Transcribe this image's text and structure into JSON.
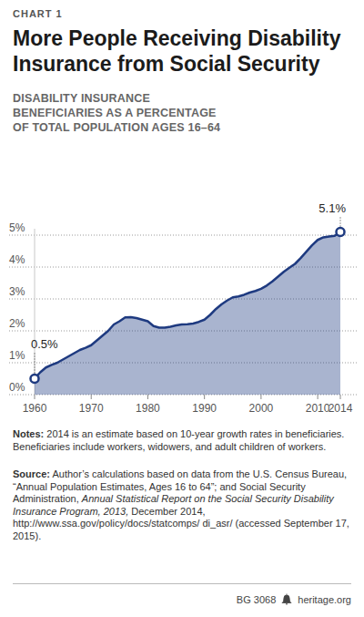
{
  "header": {
    "kicker": "CHART 1"
  },
  "chart_data": {
    "type": "area",
    "title": "More People Receiving Disability Insurance from Social Security",
    "subtitle": "DISABILITY INSURANCE BENEFICIARIES AS A PERCENTAGE OF TOTAL POPULATION AGES 16–64",
    "x": [
      1960,
      1961,
      1962,
      1963,
      1964,
      1965,
      1966,
      1967,
      1968,
      1969,
      1970,
      1971,
      1972,
      1973,
      1974,
      1975,
      1976,
      1977,
      1978,
      1979,
      1980,
      1981,
      1982,
      1983,
      1984,
      1985,
      1986,
      1987,
      1988,
      1989,
      1990,
      1991,
      1992,
      1993,
      1994,
      1995,
      1996,
      1997,
      1998,
      1999,
      2000,
      2001,
      2002,
      2003,
      2004,
      2005,
      2006,
      2007,
      2008,
      2009,
      2010,
      2011,
      2012,
      2013,
      2014
    ],
    "values": [
      0.5,
      0.7,
      0.85,
      0.93,
      1.0,
      1.1,
      1.2,
      1.3,
      1.4,
      1.47,
      1.55,
      1.7,
      1.85,
      2.0,
      2.2,
      2.3,
      2.42,
      2.43,
      2.4,
      2.35,
      2.3,
      2.15,
      2.1,
      2.1,
      2.13,
      2.17,
      2.2,
      2.21,
      2.23,
      2.28,
      2.35,
      2.5,
      2.68,
      2.83,
      2.95,
      3.05,
      3.08,
      3.13,
      3.2,
      3.25,
      3.32,
      3.42,
      3.55,
      3.7,
      3.85,
      3.98,
      4.1,
      4.28,
      4.48,
      4.68,
      4.85,
      4.93,
      4.96,
      4.98,
      5.1
    ],
    "color": "#1e3a80",
    "xlim": [
      1960,
      2014
    ],
    "xticks": [
      1960,
      1970,
      1980,
      1990,
      2000,
      2010,
      2014
    ],
    "ylim": [
      0,
      5.2
    ],
    "yticks": [
      {
        "value": 0,
        "label": "0%"
      },
      {
        "value": 1,
        "label": "1%"
      },
      {
        "value": 2,
        "label": "2%"
      },
      {
        "value": 3,
        "label": "3%"
      },
      {
        "value": 4,
        "label": "4%"
      },
      {
        "value": 5,
        "label": "5%"
      }
    ],
    "grid": true,
    "annotations": [
      {
        "x": 1960,
        "y": 0.5,
        "label": "0.5%"
      },
      {
        "x": 2014,
        "y": 5.1,
        "label": "5.1%"
      }
    ]
  },
  "notes": {
    "label": "Notes:",
    "text": "2014 is an estimate based on 10-year growth rates in beneficiaries. Beneficiaries include workers, widowers, and adult children of workers."
  },
  "source": {
    "label": "Source:",
    "parts": [
      "Author’s calculations based on data from the U.S. Census Bureau, “Annual Population Estimates, Ages 16 to 64”; and Social Security Administration, ",
      "Annual Statistical Report on the Social Security Disability Insurance Program, 2013,",
      " December 2014, http://www.ssa.gov/policy/docs/statcomps/ di_asr/ (accessed September 17, 2015)."
    ]
  },
  "footer": {
    "id": "BG 3068",
    "site": "heritage.org"
  }
}
